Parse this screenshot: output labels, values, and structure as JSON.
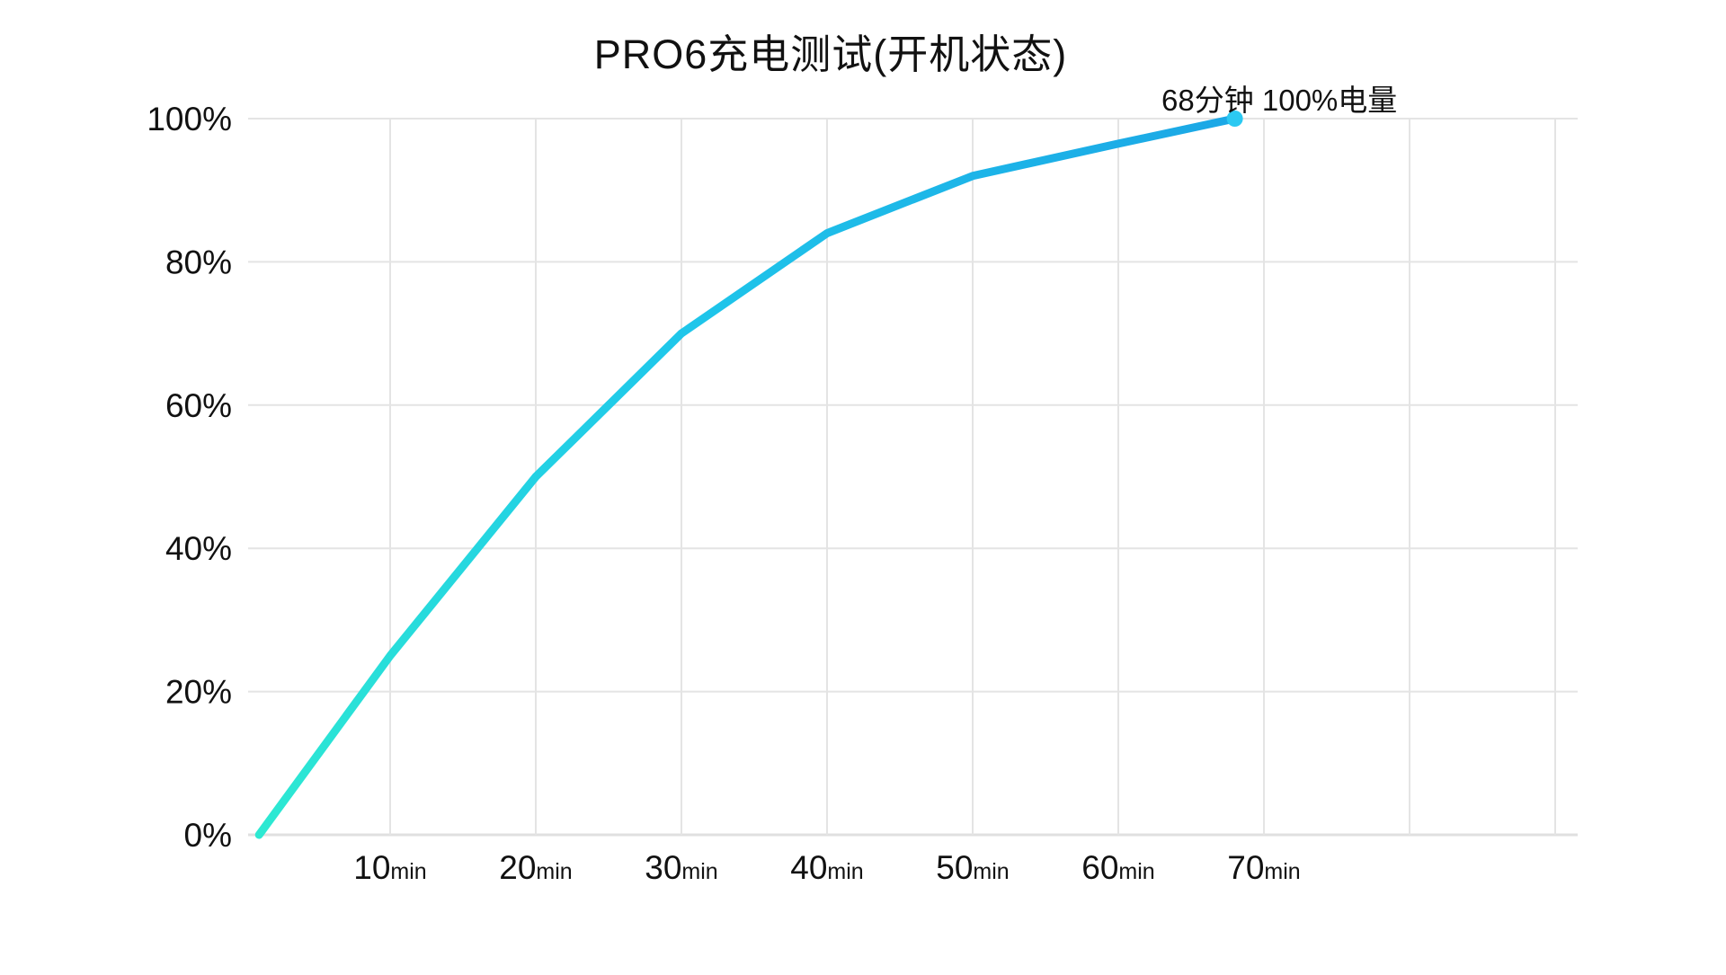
{
  "chart_data": {
    "type": "line",
    "title": "PRO6充电测试(开机状态)",
    "annotation": "68分钟 100%电量",
    "x": [
      1,
      10,
      20,
      30,
      40,
      50,
      60,
      68
    ],
    "y": [
      0,
      25,
      50,
      70,
      84,
      92,
      96.5,
      100
    ],
    "x_ticks": [
      10,
      20,
      30,
      40,
      50,
      60,
      70
    ],
    "x_gridlines": [
      10,
      20,
      30,
      40,
      50,
      60,
      70,
      80,
      90
    ],
    "x_tick_suffix": "min",
    "y_ticks": [
      0,
      20,
      40,
      60,
      80,
      100
    ],
    "y_tick_suffix": "%",
    "xlim": [
      0,
      91.5
    ],
    "ylim": [
      0,
      100
    ],
    "grid": true,
    "legend": "none",
    "colors": {
      "line_gradient_start": "#2DE9D2",
      "line_gradient_mid": "#1FC8EA",
      "line_gradient_end": "#1BA7E6",
      "endpoint_dot": "#2BC9F2",
      "gridline": "#E4E4E4",
      "baseline": "#E0E0E0",
      "text": "#111111",
      "background": "#FFFFFF"
    }
  }
}
